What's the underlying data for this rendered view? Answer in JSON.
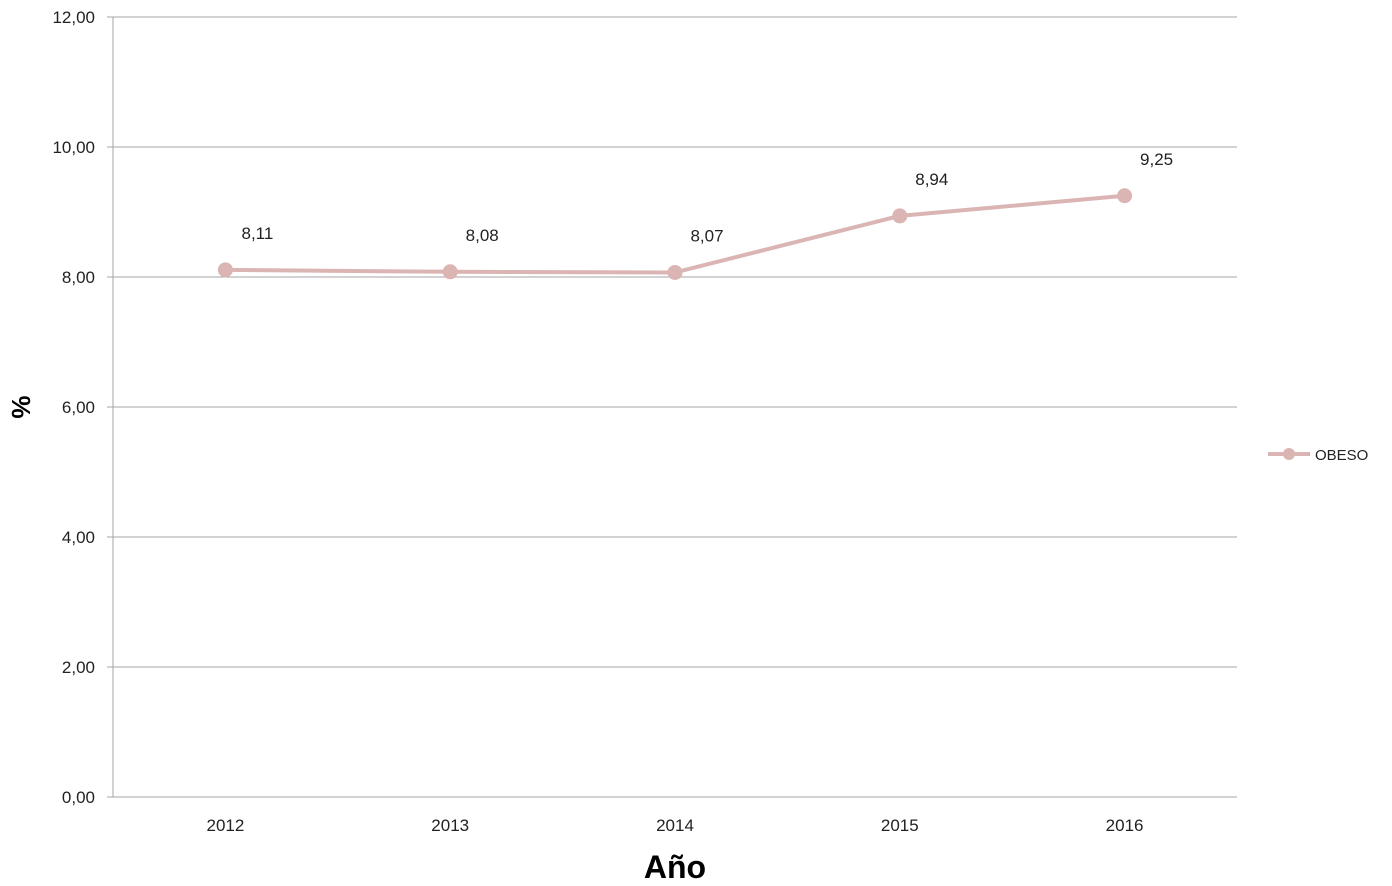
{
  "chart_data": {
    "type": "line",
    "categories": [
      "2012",
      "2013",
      "2014",
      "2015",
      "2016"
    ],
    "series": [
      {
        "name": "OBESO",
        "values": [
          8.11,
          8.08,
          8.07,
          8.94,
          9.25
        ],
        "labels": [
          "8,11",
          "8,08",
          "8,07",
          "8,94",
          "9,25"
        ],
        "color": "#dbb4b4"
      }
    ],
    "yticks": [
      "0,00",
      "2,00",
      "4,00",
      "6,00",
      "8,00",
      "10,00",
      "12,00"
    ],
    "ylim": [
      0,
      12
    ],
    "xlabel": "Año",
    "ylabel": "%",
    "grid": true,
    "legend": "right",
    "gridline_color": "#a6a6a6"
  }
}
